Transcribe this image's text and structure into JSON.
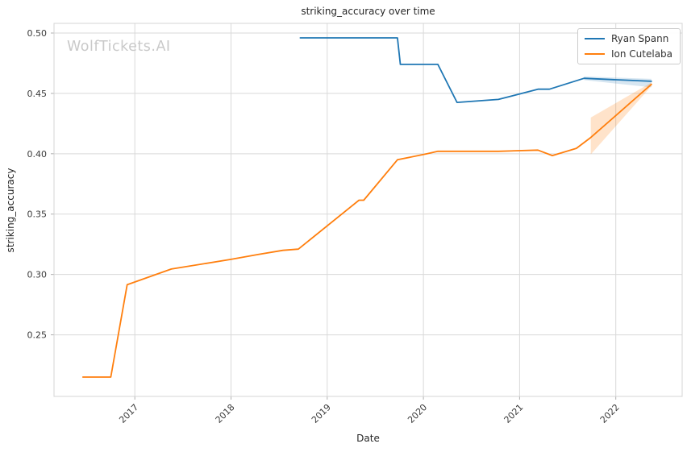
{
  "watermark": "WolfTickets.AI",
  "chart_data": {
    "type": "line",
    "title": "striking_accuracy over time",
    "xlabel": "Date",
    "ylabel": "striking_accuracy",
    "grid": true,
    "legend_position": "upper right",
    "xlim": [
      2016.16,
      2022.69
    ],
    "ylim": [
      0.199,
      0.508
    ],
    "x_ticks": [
      2017,
      2018,
      2019,
      2020,
      2021,
      2022
    ],
    "x_tick_labels": [
      "2017",
      "2018",
      "2019",
      "2020",
      "2021",
      "2022"
    ],
    "y_ticks": [
      0.25,
      0.3,
      0.35,
      0.4,
      0.45,
      0.5
    ],
    "y_tick_labels": [
      "0.25",
      "0.30",
      "0.35",
      "0.40",
      "0.45",
      "0.50"
    ],
    "colors": {
      "grid": "#d9d9d9",
      "spine": "#d4d4d4",
      "tick": "#b0b0b0",
      "text": "#3a3a3a",
      "watermark": "#c9c9c9"
    },
    "series": [
      {
        "name": "Ryan Spann",
        "color": "#1f77b4",
        "x": [
          2018.72,
          2019.73,
          2019.76,
          2020.15,
          2020.35,
          2020.78,
          2021.19,
          2021.31,
          2021.67,
          2022.37
        ],
        "y": [
          0.496,
          0.496,
          0.474,
          0.474,
          0.4425,
          0.445,
          0.4535,
          0.4535,
          0.4625,
          0.46
        ],
        "band": {
          "x": [
            2021.67,
            2022.37
          ],
          "upper": [
            0.464,
            0.462
          ],
          "lower": [
            0.461,
            0.455
          ],
          "opacity": 0.18
        }
      },
      {
        "name": "Ion Cutelaba",
        "color": "#ff7f0e",
        "x": [
          2016.46,
          2016.75,
          2016.92,
          2017.38,
          2018.0,
          2018.28,
          2018.54,
          2018.7,
          2019.33,
          2019.38,
          2019.73,
          2020.04,
          2020.15,
          2020.78,
          2021.19,
          2021.34,
          2021.59,
          2021.74,
          2022.37
        ],
        "y": [
          0.215,
          0.215,
          0.2915,
          0.3045,
          0.3125,
          0.3165,
          0.32,
          0.321,
          0.3615,
          0.3615,
          0.395,
          0.4,
          0.402,
          0.402,
          0.403,
          0.3985,
          0.4045,
          0.4135,
          0.4575
        ],
        "band": {
          "x": [
            2021.74,
            2022.37
          ],
          "upper": [
            0.43,
            0.459
          ],
          "lower": [
            0.3995,
            0.456
          ],
          "opacity": 0.22
        }
      }
    ]
  }
}
